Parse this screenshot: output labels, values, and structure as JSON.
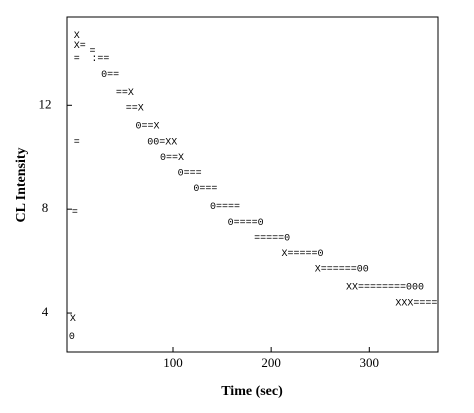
{
  "chart_data": {
    "type": "text-scatter",
    "xlabel": "Time (sec)",
    "ylabel": "CL Intensity",
    "xlim": [
      -8,
      370
    ],
    "ylim": [
      2.5,
      15.4
    ],
    "xticks": [
      100,
      200,
      300
    ],
    "yticks": [
      4,
      8,
      12
    ],
    "annotations": [
      {
        "text": "X",
        "x": 2,
        "y": 14.7
      },
      {
        "text": "X=",
        "x": 5,
        "y": 14.3
      },
      {
        "text": "=",
        "x": 18,
        "y": 14.1
      },
      {
        "text": "=",
        "x": 2,
        "y": 13.8
      },
      {
        "text": ":==",
        "x": 26,
        "y": 13.8
      },
      {
        "text": "0==",
        "x": 36,
        "y": 13.2
      },
      {
        "text": "==X",
        "x": 51,
        "y": 12.5
      },
      {
        "text": "==X",
        "x": 61,
        "y": 11.9
      },
      {
        "text": "0==X",
        "x": 74,
        "y": 11.2
      },
      {
        "text": "00=XX",
        "x": 89,
        "y": 10.6
      },
      {
        "text": "0==X",
        "x": 99,
        "y": 10
      },
      {
        "text": "0===",
        "x": 117,
        "y": 9.4
      },
      {
        "text": "0===",
        "x": 133,
        "y": 8.8
      },
      {
        "text": "0====",
        "x": 153,
        "y": 8.1
      },
      {
        "text": "0====0",
        "x": 174,
        "y": 7.5
      },
      {
        "text": "=====0",
        "x": 201,
        "y": 6.9
      },
      {
        "text": "X=====0",
        "x": 232,
        "y": 6.3
      },
      {
        "text": "X======00",
        "x": 272,
        "y": 5.7
      },
      {
        "text": "XX========000",
        "x": 316,
        "y": 5
      },
      {
        "text": "XXX====",
        "x": 348,
        "y": 4.4
      },
      {
        "text": "=",
        "x": 2,
        "y": 10.6
      },
      {
        "text": "=",
        "x": 0,
        "y": 7.9
      },
      {
        "text": "X",
        "x": -2,
        "y": 3.8
      },
      {
        "text": "0",
        "x": -3,
        "y": 3.1
      }
    ]
  }
}
